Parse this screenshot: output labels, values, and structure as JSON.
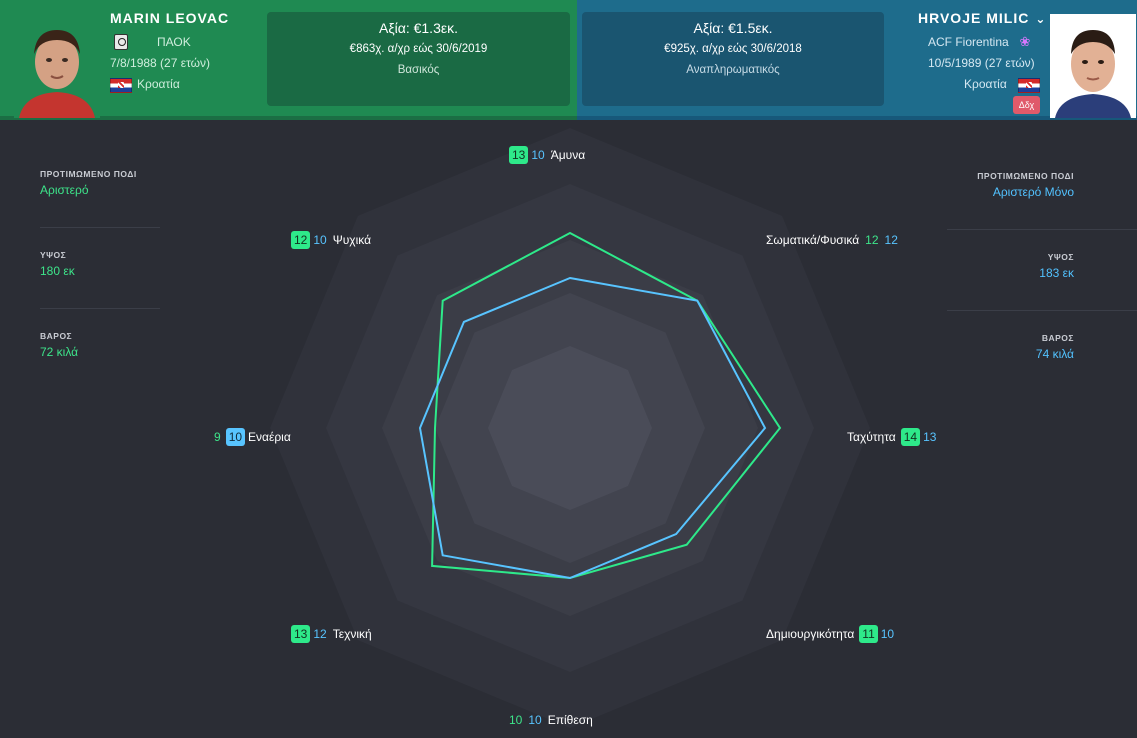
{
  "left_player": {
    "name": "MARIN LEOVAC",
    "club": "ΠΑΟΚ",
    "birth": "7/8/1988 (27 ετών)",
    "nation": "Κροατία",
    "value": "Αξία: €1.3εκ.",
    "contract": "€863χ. α/χρ εώς 30/6/2019",
    "role": "Βασικός",
    "color": "#2ee98a"
  },
  "right_player": {
    "name": "HRVOJE MILIC",
    "club": "ACF Fiorentina",
    "birth": "10/5/1989 (27 ετών)",
    "nation": "Κροατία",
    "badge": "Δδχ",
    "value": "Αξία: €1.5εκ.",
    "contract": "€925χ. α/χρ εώς 30/6/2018",
    "role": "Αναπληρωματικός",
    "color": "#58c4ff"
  },
  "left_stats": [
    {
      "label": "ΠΡΟΤΙΜΩΜΕΝΟ ΠΟΔΙ",
      "value": "Αριστερό"
    },
    {
      "label": "ΥΨΟΣ",
      "value": "180 εκ"
    },
    {
      "label": "ΒΑΡΟΣ",
      "value": "72 κιλά"
    }
  ],
  "right_stats": [
    {
      "label": "ΠΡΟΤΙΜΩΜΕΝΟ ΠΟΔΙ",
      "value": "Αριστερό Μόνο"
    },
    {
      "label": "ΥΨΟΣ",
      "value": "183 εκ"
    },
    {
      "label": "ΒΑΡΟΣ",
      "value": "74 κιλά"
    }
  ],
  "chart_data": {
    "type": "radar",
    "max": 20,
    "categories": [
      "Άμυνα",
      "Σωματικά/Φυσικά",
      "Ταχύτητα",
      "Δημιουργικότητα",
      "Επίθεση",
      "Τεχνική",
      "Εναέρια",
      "Ψυχικά"
    ],
    "series": [
      {
        "name": "MARIN LEOVAC",
        "values": [
          13,
          12,
          14,
          11,
          10,
          13,
          9,
          12
        ]
      },
      {
        "name": "HRVOJE MILIC",
        "values": [
          10,
          12,
          13,
          10,
          10,
          12,
          10,
          10
        ]
      }
    ]
  }
}
